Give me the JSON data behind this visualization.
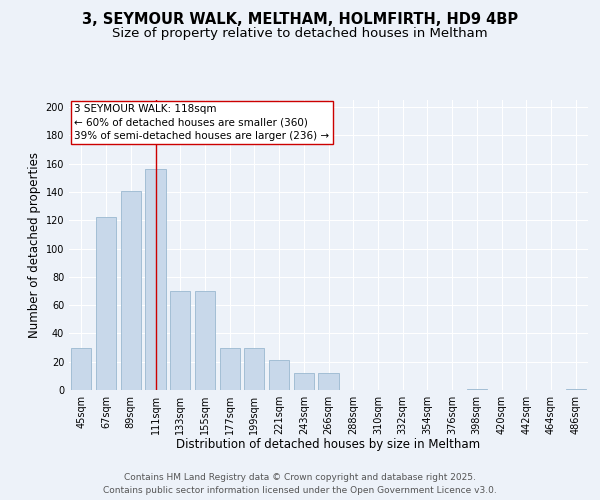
{
  "title_line1": "3, SEYMOUR WALK, MELTHAM, HOLMFIRTH, HD9 4BP",
  "title_line2": "Size of property relative to detached houses in Meltham",
  "xlabel": "Distribution of detached houses by size in Meltham",
  "ylabel": "Number of detached properties",
  "categories": [
    "45sqm",
    "67sqm",
    "89sqm",
    "111sqm",
    "133sqm",
    "155sqm",
    "177sqm",
    "199sqm",
    "221sqm",
    "243sqm",
    "266sqm",
    "288sqm",
    "310sqm",
    "332sqm",
    "354sqm",
    "376sqm",
    "398sqm",
    "420sqm",
    "442sqm",
    "464sqm",
    "486sqm"
  ],
  "values": [
    30,
    122,
    141,
    156,
    70,
    70,
    30,
    30,
    21,
    12,
    12,
    0,
    0,
    0,
    0,
    0,
    1,
    0,
    0,
    0,
    1
  ],
  "bar_color": "#c8d8ea",
  "bar_edge_color": "#9ab8d0",
  "vline_index": 3,
  "vline_color": "#cc0000",
  "annotation_line1": "3 SEYMOUR WALK: 118sqm",
  "annotation_line2": "← 60% of detached houses are smaller (360)",
  "annotation_line3": "39% of semi-detached houses are larger (236) →",
  "annotation_box_facecolor": "#ffffff",
  "annotation_box_edgecolor": "#cc0000",
  "ylim": [
    0,
    205
  ],
  "yticks": [
    0,
    20,
    40,
    60,
    80,
    100,
    120,
    140,
    160,
    180,
    200
  ],
  "background_color": "#edf2f9",
  "grid_color": "#ffffff",
  "title_fontsize": 10.5,
  "subtitle_fontsize": 9.5,
  "axis_label_fontsize": 8.5,
  "tick_fontsize": 7,
  "annotation_fontsize": 7.5,
  "footer_fontsize": 6.5,
  "footer_text": "Contains HM Land Registry data © Crown copyright and database right 2025.\nContains public sector information licensed under the Open Government Licence v3.0."
}
